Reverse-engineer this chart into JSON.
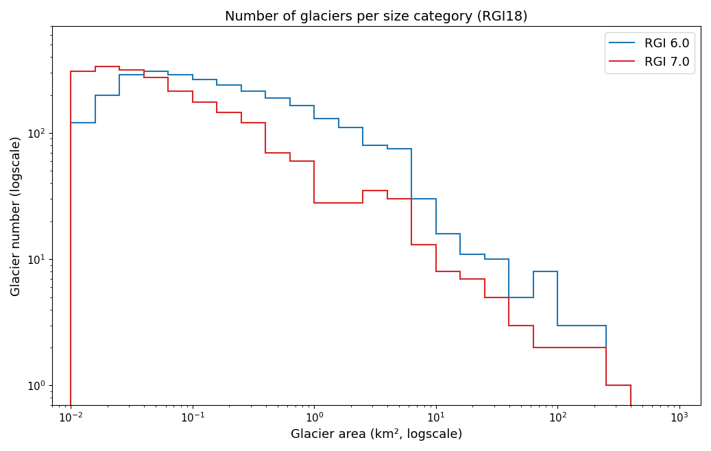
{
  "title": "Number of glaciers per size category (RGI18)",
  "xlabel": "Glacier area (km², logscale)",
  "ylabel": "Glacier number (logscale)",
  "rgi60_color": "#1f77b4",
  "rgi70_color": "#d62728",
  "rgi60_label": "RGI 6.0",
  "rgi70_label": "RGI 7.0",
  "xlim_low": 0.007,
  "xlim_high": 1500,
  "ylim_low": 0.7,
  "ylim_high": 700,
  "log_bin_start": -2,
  "log_bin_end": 3,
  "num_bins": 25,
  "rgi60_counts": [
    120,
    200,
    290,
    310,
    290,
    265,
    240,
    215,
    190,
    165,
    130,
    110,
    80,
    75,
    30,
    16,
    11,
    10,
    5,
    8,
    3,
    3,
    1,
    0,
    0
  ],
  "rgi70_counts": [
    310,
    335,
    315,
    275,
    215,
    175,
    145,
    120,
    70,
    60,
    28,
    28,
    35,
    30,
    13,
    8,
    7,
    5,
    3,
    2,
    2,
    2,
    1,
    0,
    0
  ],
  "legend_loc": "upper right",
  "title_fontsize": 14,
  "label_fontsize": 13,
  "tick_fontsize": 11
}
